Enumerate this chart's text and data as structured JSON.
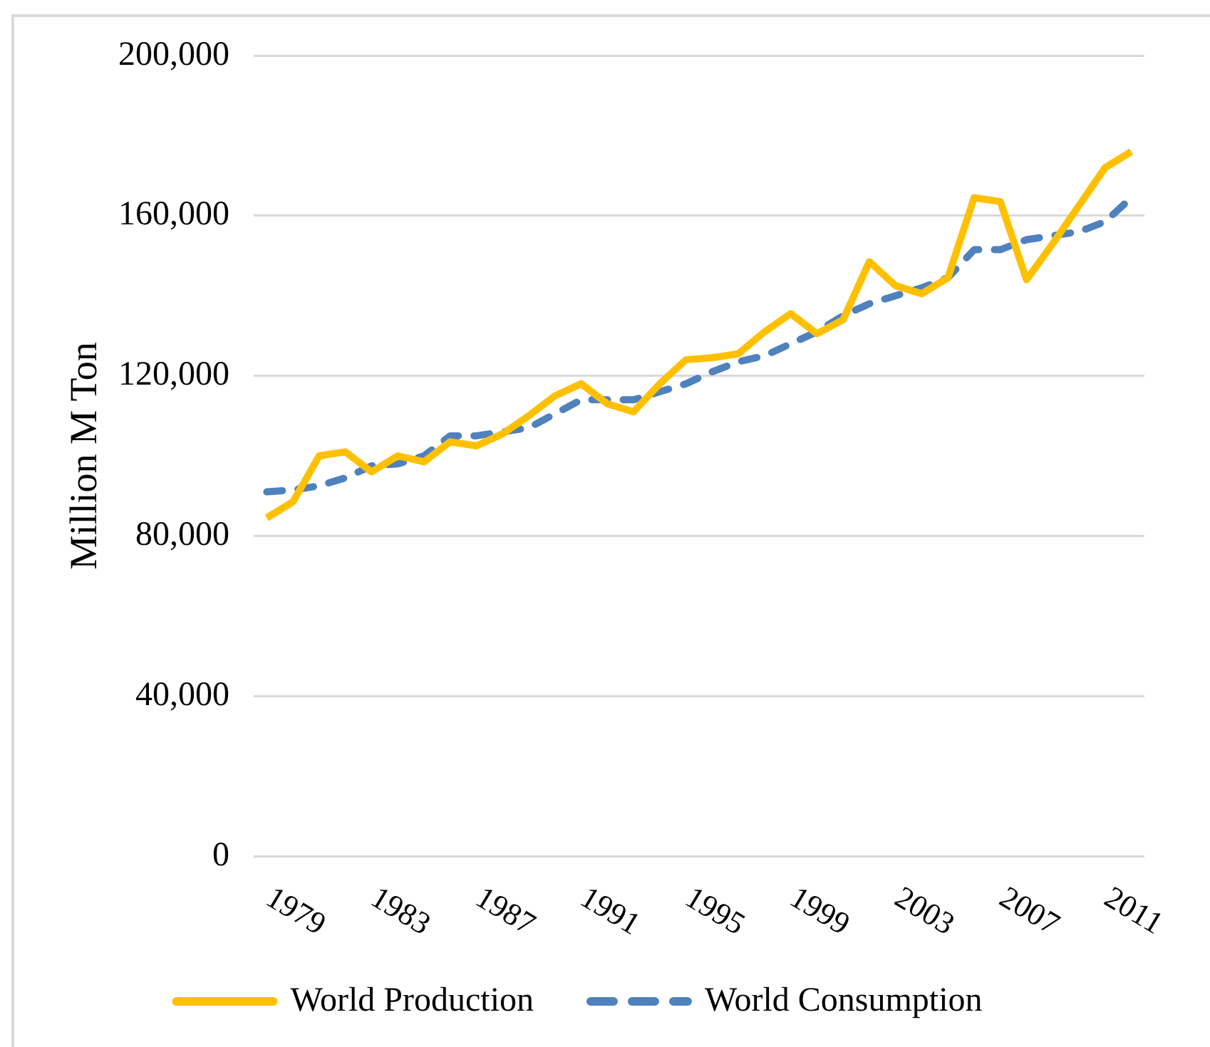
{
  "chart_data": {
    "type": "line",
    "ylabel": "Million M Ton",
    "categories": [
      "1979",
      null,
      null,
      null,
      "1983",
      null,
      null,
      null,
      "1987",
      null,
      null,
      null,
      "1991",
      null,
      null,
      null,
      "1995",
      null,
      null,
      null,
      "1999",
      null,
      null,
      null,
      "2003",
      null,
      null,
      null,
      "2007",
      null,
      null,
      null,
      "2011",
      null
    ],
    "series": [
      {
        "name": "World Production",
        "color": "#ffc000",
        "line_style": "solid",
        "values": [
          84500,
          88500,
          100000,
          101000,
          96000,
          100000,
          98500,
          103500,
          102500,
          105500,
          110000,
          115000,
          118000,
          113000,
          111000,
          118000,
          124000,
          124500,
          125500,
          131000,
          135500,
          130500,
          134000,
          148500,
          142500,
          140500,
          144500,
          164500,
          163500,
          144000,
          153000,
          162500,
          172000,
          176000
        ]
      },
      {
        "name": "World Consumption",
        "color": "#4f81bd",
        "line_style": "dashed",
        "values": [
          91000,
          91500,
          92500,
          94500,
          97500,
          98000,
          100000,
          105000,
          105000,
          106000,
          107000,
          110500,
          114000,
          114000,
          114000,
          116000,
          118000,
          121000,
          123500,
          125000,
          128000,
          131000,
          135000,
          138000,
          140000,
          142000,
          144500,
          151500,
          151500,
          154000,
          155000,
          156000,
          158500,
          164500
        ]
      }
    ],
    "ylim": [
      0,
      200000
    ],
    "yticks": [
      0,
      {
        "value": 40000,
        "label": "40,000"
      },
      {
        "value": 80000,
        "label": "80,000"
      },
      {
        "value": 120000,
        "label": "120,000"
      },
      {
        "value": 160000,
        "label": "160,000"
      },
      {
        "value": 200000,
        "label": "200,000"
      }
    ],
    "grid": "y",
    "legend": "bottom",
    "marker": "none"
  }
}
